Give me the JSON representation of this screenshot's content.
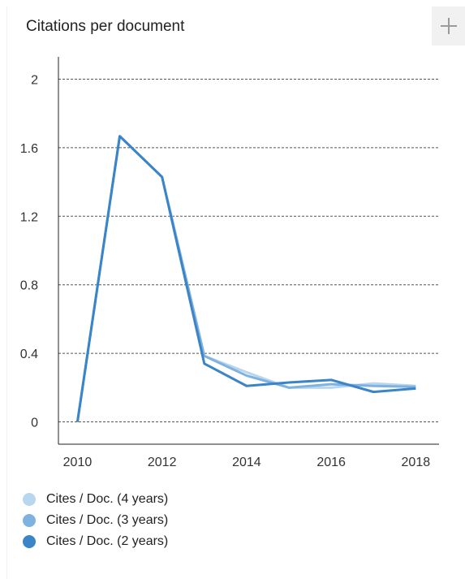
{
  "title": "Citations per document",
  "add_button_icon": "plus-icon",
  "chart_data": {
    "type": "line",
    "title": "Citations per document",
    "xlabel": "",
    "ylabel": "",
    "x": [
      2010,
      2011,
      2012,
      2013,
      2014,
      2015,
      2016,
      2017,
      2018
    ],
    "xticks": [
      "2010",
      "2012",
      "2014",
      "2016",
      "2018"
    ],
    "yticks": [
      "0",
      "0.4",
      "0.8",
      "1.2",
      "1.6",
      "2"
    ],
    "ylim": [
      -0.13,
      2.13
    ],
    "xlim": [
      2009.55,
      2018.55
    ],
    "grid": "horizontal dashed",
    "legend_position": "bottom-left",
    "series": [
      {
        "name": "Cites / Doc. (4 years)",
        "color": "#b9d6ef",
        "values": [
          0,
          1.667,
          1.429,
          0.385,
          0.29,
          0.2,
          0.2,
          0.225,
          0.21
        ]
      },
      {
        "name": "Cites / Doc. (3 years)",
        "color": "#7fb2df",
        "values": [
          0,
          1.667,
          1.429,
          0.385,
          0.27,
          0.2,
          0.22,
          0.21,
          0.205
        ]
      },
      {
        "name": "Cites / Doc. (2 years)",
        "color": "#3a84c7",
        "values": [
          0,
          1.667,
          1.429,
          0.34,
          0.21,
          0.23,
          0.245,
          0.175,
          0.195
        ]
      }
    ]
  }
}
